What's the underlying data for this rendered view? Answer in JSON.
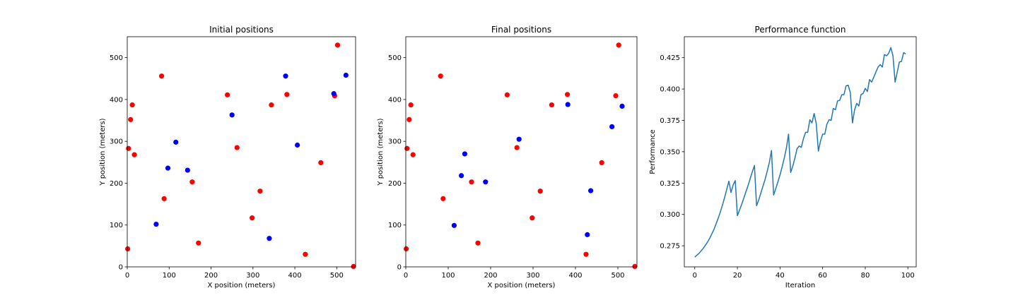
{
  "chart_data": [
    {
      "type": "scatter",
      "title": "Initial positions",
      "xlabel": "X position (meters)",
      "ylabel": "Y position (meters)",
      "xlim": [
        0,
        545
      ],
      "ylim": [
        0,
        550
      ],
      "xticks": [
        0,
        100,
        200,
        300,
        400,
        500
      ],
      "yticks": [
        0,
        100,
        200,
        300,
        400,
        500
      ],
      "grid": false,
      "series": [
        {
          "color": "#ff0000",
          "points": [
            [
              1,
              43
            ],
            [
              3,
              283
            ],
            [
              8,
              352
            ],
            [
              12,
              387
            ],
            [
              17,
              268
            ],
            [
              82,
              456
            ],
            [
              88,
              163
            ],
            [
              155,
              203
            ],
            [
              170,
              57
            ],
            [
              239,
              411
            ],
            [
              262,
              285
            ],
            [
              298,
              117
            ],
            [
              317,
              181
            ],
            [
              344,
              387
            ],
            [
              381,
              412
            ],
            [
              425,
              30
            ],
            [
              462,
              249
            ],
            [
              495,
              409
            ],
            [
              502,
              530
            ],
            [
              540,
              1
            ]
          ]
        },
        {
          "color": "#0000ff",
          "points": [
            [
              69,
              102
            ],
            [
              97,
              236
            ],
            [
              116,
              298
            ],
            [
              144,
              231
            ],
            [
              250,
              363
            ],
            [
              339,
              68
            ],
            [
              378,
              456
            ],
            [
              406,
              291
            ],
            [
              493,
              414
            ],
            [
              522,
              458
            ]
          ]
        }
      ]
    },
    {
      "type": "scatter",
      "title": "Final positions",
      "xlabel": "X position (meters)",
      "ylabel": "Y position (meters)",
      "xlim": [
        0,
        545
      ],
      "ylim": [
        0,
        550
      ],
      "xticks": [
        0,
        100,
        200,
        300,
        400,
        500
      ],
      "yticks": [
        0,
        100,
        200,
        300,
        400,
        500
      ],
      "grid": false,
      "series": [
        {
          "color": "#ff0000",
          "points": [
            [
              1,
              43
            ],
            [
              3,
              283
            ],
            [
              8,
              352
            ],
            [
              12,
              387
            ],
            [
              17,
              268
            ],
            [
              82,
              456
            ],
            [
              88,
              163
            ],
            [
              155,
              203
            ],
            [
              170,
              57
            ],
            [
              239,
              411
            ],
            [
              262,
              285
            ],
            [
              298,
              117
            ],
            [
              317,
              181
            ],
            [
              344,
              387
            ],
            [
              381,
              412
            ],
            [
              425,
              30
            ],
            [
              462,
              249
            ],
            [
              495,
              409
            ],
            [
              502,
              530
            ],
            [
              540,
              1
            ]
          ]
        },
        {
          "color": "#0000ff",
          "points": [
            [
              114,
              99
            ],
            [
              131,
              218
            ],
            [
              139,
              270
            ],
            [
              188,
              203
            ],
            [
              267,
              305
            ],
            [
              382,
              388
            ],
            [
              428,
              77
            ],
            [
              436,
              182
            ],
            [
              486,
              335
            ],
            [
              510,
              384
            ]
          ]
        }
      ]
    },
    {
      "type": "line",
      "title": "Performance function",
      "xlabel": "Iteration",
      "ylabel": "Performance",
      "xlim": [
        -4.9,
        103.9
      ],
      "ylim": [
        0.2582,
        0.4417
      ],
      "xticks": [
        0,
        20,
        40,
        60,
        80,
        100
      ],
      "yticks": [
        "0.275",
        "0.300",
        "0.325",
        "0.350",
        "0.375",
        "0.400",
        "0.425"
      ],
      "grid": false,
      "series": [
        {
          "color": "#1f77b4",
          "x": [
            0,
            1,
            2,
            3,
            4,
            5,
            6,
            7,
            8,
            9,
            10,
            11,
            12,
            13,
            14,
            15,
            16,
            17,
            18,
            19,
            20,
            21,
            22,
            23,
            24,
            25,
            26,
            27,
            28,
            29,
            30,
            31,
            32,
            33,
            34,
            35,
            36,
            37,
            38,
            39,
            40,
            41,
            42,
            43,
            44,
            45,
            46,
            47,
            48,
            49,
            50,
            51,
            52,
            53,
            54,
            55,
            56,
            57,
            58,
            59,
            60,
            61,
            62,
            63,
            64,
            65,
            66,
            67,
            68,
            69,
            70,
            71,
            72,
            73,
            74,
            75,
            76,
            77,
            78,
            79,
            80,
            81,
            82,
            83,
            84,
            85,
            86,
            87,
            88,
            89,
            90,
            91,
            92,
            93,
            94,
            95,
            96,
            97,
            98,
            99
          ],
          "y": [
            0.266,
            0.2675,
            0.269,
            0.271,
            0.273,
            0.2755,
            0.278,
            0.281,
            0.2845,
            0.288,
            0.2925,
            0.297,
            0.302,
            0.3075,
            0.3135,
            0.32,
            0.3265,
            0.3175,
            0.3235,
            0.327,
            0.299,
            0.3035,
            0.308,
            0.313,
            0.318,
            0.323,
            0.3285,
            0.334,
            0.339,
            0.307,
            0.3115,
            0.317,
            0.3225,
            0.328,
            0.3345,
            0.3415,
            0.351,
            0.3155,
            0.3205,
            0.326,
            0.3315,
            0.338,
            0.345,
            0.353,
            0.364,
            0.3335,
            0.3385,
            0.345,
            0.3525,
            0.3545,
            0.3535,
            0.3605,
            0.3655,
            0.3655,
            0.3755,
            0.373,
            0.3805,
            0.3725,
            0.3505,
            0.3585,
            0.364,
            0.364,
            0.372,
            0.3755,
            0.375,
            0.3845,
            0.3835,
            0.3905,
            0.391,
            0.3955,
            0.3955,
            0.4025,
            0.403,
            0.397,
            0.373,
            0.3835,
            0.3885,
            0.3865,
            0.3955,
            0.3965,
            0.4005,
            0.398,
            0.4075,
            0.4055,
            0.4095,
            0.4135,
            0.4175,
            0.4195,
            0.4175,
            0.4275,
            0.4265,
            0.4285,
            0.433,
            0.4265,
            0.4055,
            0.4135,
            0.4215,
            0.422,
            0.429,
            0.428
          ]
        }
      ]
    }
  ]
}
